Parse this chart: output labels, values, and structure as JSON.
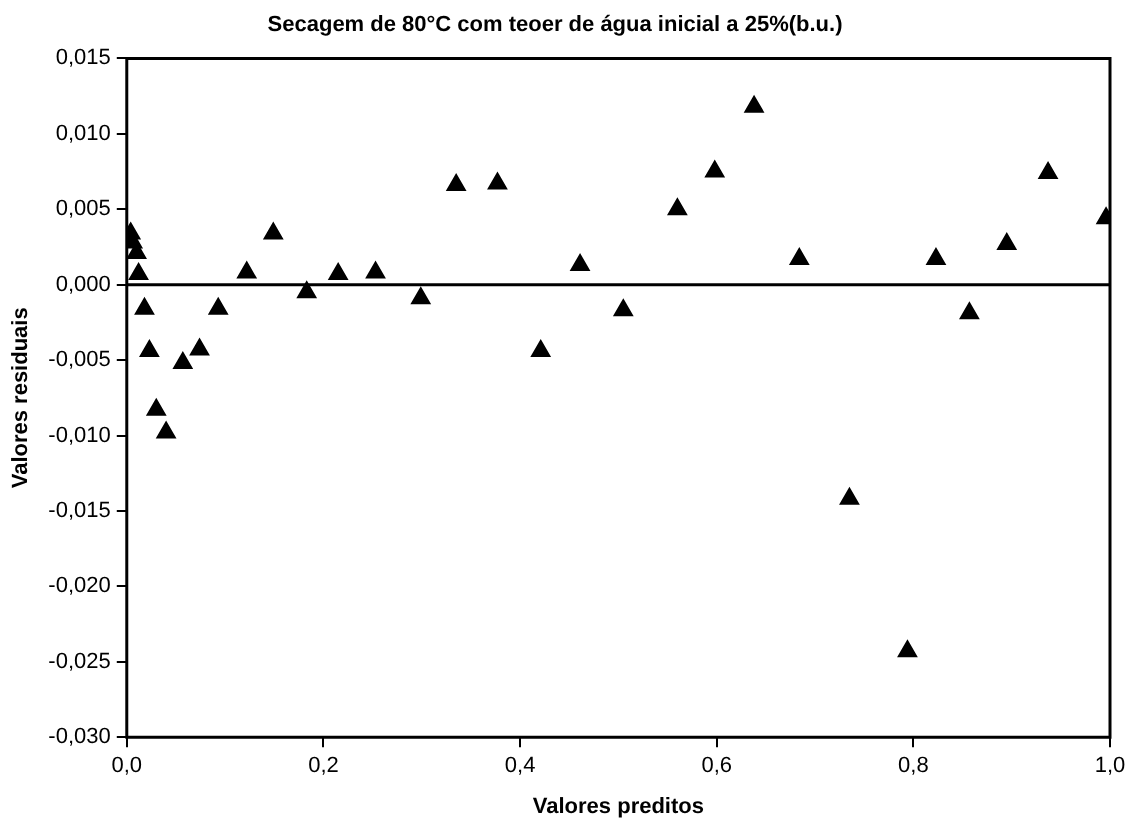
{
  "chart_data": {
    "type": "scatter",
    "title": "Secagem de 80°C com teoer de água inicial a 25%(b.u.)",
    "xlabel": "Valores preditos",
    "ylabel": "Valores residuais",
    "x": [
      0.004,
      0.006,
      0.01,
      0.012,
      0.018,
      0.023,
      0.03,
      0.04,
      0.057,
      0.074,
      0.093,
      0.122,
      0.149,
      0.183,
      0.215,
      0.253,
      0.299,
      0.335,
      0.377,
      0.421,
      0.461,
      0.505,
      0.56,
      0.598,
      0.638,
      0.684,
      0.735,
      0.794,
      0.823,
      0.857,
      0.895,
      0.937,
      0.996
    ],
    "values": [
      0.0034,
      0.0028,
      0.0021,
      0.0007,
      -0.0016,
      -0.0044,
      -0.0083,
      -0.0098,
      -0.0052,
      -0.0043,
      -0.0016,
      0.0008,
      0.0034,
      -0.0005,
      0.0007,
      0.0008,
      -0.0009,
      0.0066,
      0.0067,
      -0.0044,
      0.0013,
      -0.0017,
      0.005,
      0.0075,
      0.0118,
      0.0017,
      -0.0142,
      -0.0243,
      0.0017,
      -0.0019,
      0.0027,
      0.0074,
      0.0044
    ],
    "color": "#000000",
    "marker": "triangle",
    "xlim": [
      0,
      1
    ],
    "xticks": [
      {
        "value": 0,
        "label": "0,0"
      },
      {
        "value": 0.2,
        "label": "0,2"
      },
      {
        "value": 0.4,
        "label": "0,4"
      },
      {
        "value": 0.6,
        "label": "0,6"
      },
      {
        "value": 0.8,
        "label": "0,8"
      },
      {
        "value": 1,
        "label": "1,0"
      }
    ],
    "ylim": [
      -0.03,
      0.015
    ],
    "yticks": [
      {
        "value": -0.03,
        "label": "-0,030"
      },
      {
        "value": -0.025,
        "label": "-0,025"
      },
      {
        "value": -0.02,
        "label": "-0,020"
      },
      {
        "value": -0.015,
        "label": "-0,015"
      },
      {
        "value": -0.01,
        "label": "-0,010"
      },
      {
        "value": -0.005,
        "label": "-0,005"
      },
      {
        "value": 0,
        "label": "0,000"
      },
      {
        "value": 0.005,
        "label": "0,005"
      },
      {
        "value": 0.01,
        "label": "0,010"
      },
      {
        "value": 0.015,
        "label": "0,015"
      }
    ],
    "ref_lines": [
      {
        "axis": "y",
        "value": 0,
        "color": "#000000"
      }
    ],
    "grid": false,
    "legend": false
  }
}
